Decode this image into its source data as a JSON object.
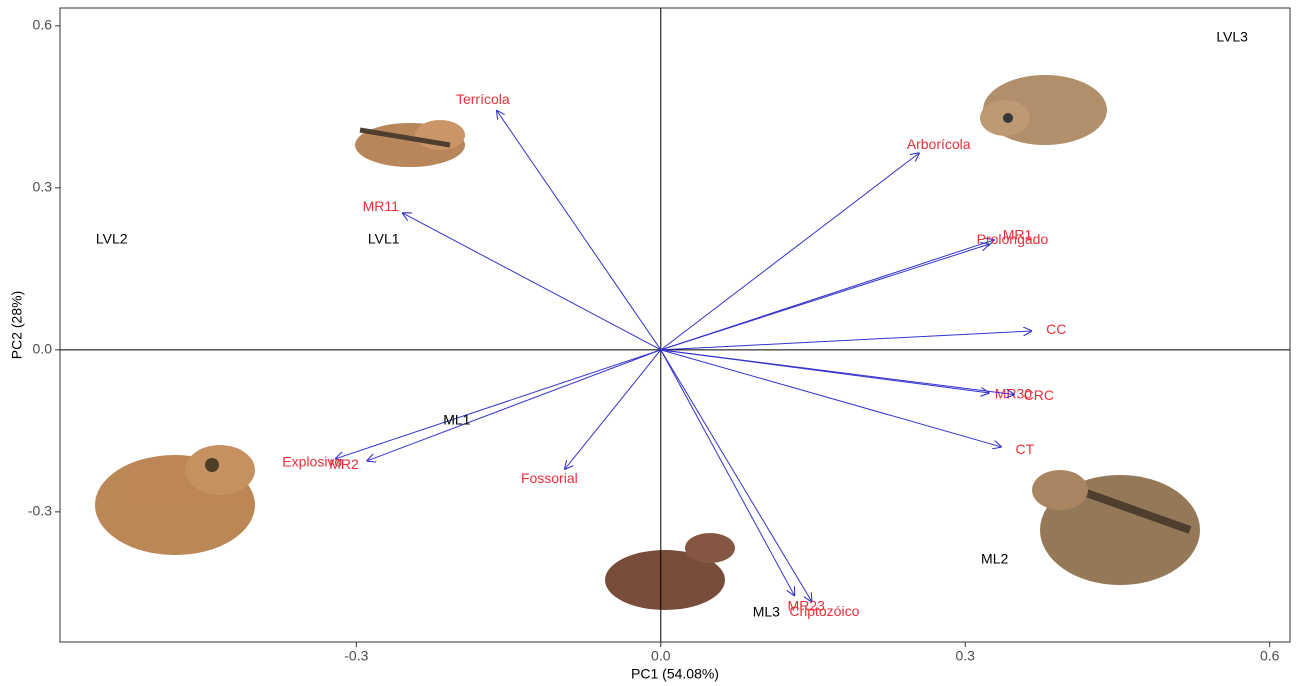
{
  "chart_data": {
    "type": "biplot",
    "x_label": "PC1 (54.08%)",
    "y_label": "PC2 (28%)",
    "xlim": [
      -0.592,
      0.62
    ],
    "ylim": [
      -0.541,
      0.633
    ],
    "xticks": [
      -0.3,
      {
        "value": 0,
        "label": "0.0"
      },
      0.3,
      0.6
    ],
    "yticks": [
      -0.3,
      {
        "value": 0,
        "label": "0.0"
      },
      0.3,
      0.6
    ],
    "arrow_color": "#3333cc",
    "arrow_label_color": "#e8303a",
    "group_label_color": "#000000",
    "loadings": [
      {
        "name": "Terrícola",
        "x": -0.162,
        "y": 0.444
      },
      {
        "name": "MR11",
        "x": -0.255,
        "y": 0.254
      },
      {
        "name": "Arborícola",
        "x": 0.255,
        "y": 0.365
      },
      {
        "name": "MR1",
        "x": 0.329,
        "y": 0.204
      },
      {
        "name": "Prolongado",
        "x": 0.324,
        "y": 0.196
      },
      {
        "name": "CC",
        "x": 0.366,
        "y": 0.035
      },
      {
        "name": "MR30",
        "x": 0.324,
        "y": -0.08
      },
      {
        "name": "CRC",
        "x": 0.349,
        "y": -0.083
      },
      {
        "name": "CT",
        "x": 0.336,
        "y": -0.18
      },
      {
        "name": "Criptozóico",
        "x": 0.149,
        "y": -0.467
      },
      {
        "name": "MR23",
        "x": 0.132,
        "y": -0.456
      },
      {
        "name": "Fossorial",
        "x": -0.095,
        "y": -0.222
      },
      {
        "name": "Explosivo",
        "x": -0.321,
        "y": -0.202
      },
      {
        "name": "MR2",
        "x": -0.29,
        "y": -0.206
      }
    ],
    "groups": [
      {
        "label": "LVL3",
        "x": 0.563,
        "y": 0.578
      },
      {
        "label": "LVL2",
        "x": -0.541,
        "y": 0.204
      },
      {
        "label": "LVL1",
        "x": -0.273,
        "y": 0.204
      },
      {
        "label": "ML1",
        "x": -0.201,
        "y": -0.131
      },
      {
        "label": "ML2",
        "x": 0.329,
        "y": -0.389
      },
      {
        "label": "ML3",
        "x": 0.104,
        "y": -0.487
      }
    ]
  }
}
